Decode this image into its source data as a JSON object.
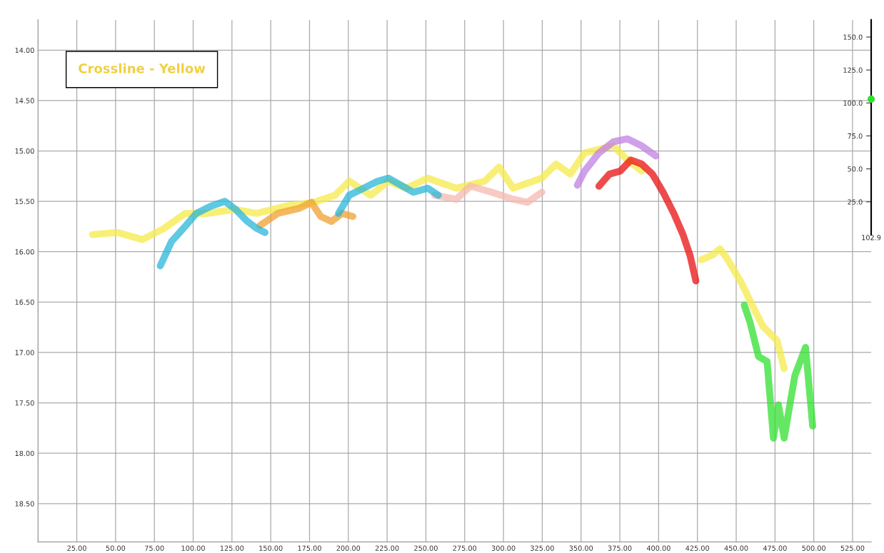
{
  "chart_data": {
    "type": "line",
    "annotations": [
      "Crossline - Yellow",
      "102.9"
    ],
    "xlim": [
      0,
      537
    ],
    "ylim": [
      18.88,
      13.7
    ],
    "xticks": [
      {
        "value": 25,
        "label": "25.00"
      },
      {
        "value": 50,
        "label": "50.00"
      },
      {
        "value": 75,
        "label": "75.00"
      },
      {
        "value": 100,
        "label": "100.00"
      },
      {
        "value": 125,
        "label": "125.00"
      },
      {
        "value": 150,
        "label": "150.00"
      },
      {
        "value": 175,
        "label": "175.00"
      },
      {
        "value": 200,
        "label": "200.00"
      },
      {
        "value": 225,
        "label": "225.00"
      },
      {
        "value": 250,
        "label": "250.00"
      },
      {
        "value": 275,
        "label": "275.00"
      },
      {
        "value": 300,
        "label": "300.00"
      },
      {
        "value": 325,
        "label": "325.00"
      },
      {
        "value": 350,
        "label": "350.00"
      },
      {
        "value": 375,
        "label": "375.00"
      },
      {
        "value": 400,
        "label": "400.00"
      },
      {
        "value": 425,
        "label": "425.00"
      },
      {
        "value": 450,
        "label": "450.00"
      },
      {
        "value": 475,
        "label": "475.00"
      },
      {
        "value": 500,
        "label": "500.00"
      },
      {
        "value": 525,
        "label": "525.00"
      }
    ],
    "yticks": [
      {
        "value": 14,
        "label": "14.00"
      },
      {
        "value": 14.5,
        "label": "14.50"
      },
      {
        "value": 15,
        "label": "15.00"
      },
      {
        "value": 15.5,
        "label": "15.50"
      },
      {
        "value": 16,
        "label": "16.00"
      },
      {
        "value": 16.5,
        "label": "16.50"
      },
      {
        "value": 17,
        "label": "17.00"
      },
      {
        "value": 17.5,
        "label": "17.50"
      },
      {
        "value": 18,
        "label": "18.00"
      },
      {
        "value": 18.5,
        "label": "18.50"
      }
    ],
    "y2lim": [
      -233,
      163
    ],
    "y2ticks": [
      {
        "value": 25,
        "label": "25.0"
      },
      {
        "value": 50,
        "label": "50.0"
      },
      {
        "value": 75,
        "label": "75.0"
      },
      {
        "value": 100,
        "label": "100.0"
      },
      {
        "value": 125,
        "label": "125.0"
      },
      {
        "value": 150,
        "label": "150.0"
      }
    ],
    "grid": true,
    "marker": "none",
    "line_style": "solid",
    "series": [
      {
        "color": "#f5e94a",
        "x": [
          35.1,
          51.2,
          67.3,
          81.1,
          94.9,
          108.7,
          127.0,
          140.8,
          159.2,
          177.6,
          191.4,
          200.6,
          214.4,
          225.9,
          237.4,
          251.2,
          269.5,
          287.9,
          297.1,
          306.3,
          324.7,
          333.9,
          343.1,
          352.3,
          370.7,
          379.9,
          389.1
        ],
        "values": [
          15.83,
          15.81,
          15.88,
          15.77,
          15.62,
          15.62,
          15.58,
          15.62,
          15.55,
          15.51,
          15.44,
          15.3,
          15.44,
          15.3,
          15.37,
          15.27,
          15.37,
          15.3,
          15.16,
          15.37,
          15.27,
          15.13,
          15.23,
          15.02,
          14.95,
          15.09,
          15.2
        ]
      },
      {
        "color": "#f5e94a",
        "x": [
          427.6,
          435.0,
          439.6,
          444.2,
          453.4,
          460.3,
          467.2,
          476.3,
          480.9
        ],
        "values": [
          16.08,
          16.03,
          15.97,
          16.07,
          16.31,
          16.53,
          16.74,
          16.88,
          17.16
        ]
      },
      {
        "color": "#f5b8b0",
        "x": [
          255.7,
          269.5,
          278.7,
          292.5,
          306.3,
          315.5,
          324.7
        ],
        "values": [
          15.44,
          15.48,
          15.35,
          15.41,
          15.48,
          15.51,
          15.41
        ]
      },
      {
        "color": "#f0a030",
        "x": [
          143.1,
          154.6,
          168.4,
          176.2,
          182.2,
          189.1,
          196.0,
          202.9
        ],
        "values": [
          15.74,
          15.62,
          15.57,
          15.51,
          15.65,
          15.7,
          15.62,
          15.65
        ]
      },
      {
        "color": "#29b6d8",
        "x": [
          78.8,
          86.0,
          94.2,
          102.0,
          111.2,
          120.4,
          127.3,
          134.2,
          141.1,
          146.3
        ],
        "values": [
          16.14,
          15.9,
          15.76,
          15.62,
          15.55,
          15.5,
          15.58,
          15.69,
          15.77,
          15.81
        ]
      },
      {
        "color": "#29b6d8",
        "x": [
          193.7,
          200.6,
          209.8,
          219.0,
          225.9,
          235.1,
          242.0,
          251.2,
          258.0
        ],
        "values": [
          15.62,
          15.44,
          15.37,
          15.3,
          15.27,
          15.35,
          15.41,
          15.37,
          15.44
        ]
      },
      {
        "color": "#c080e0",
        "x": [
          347.6,
          352.3,
          361.5,
          370.7,
          379.9,
          389.1,
          398.2
        ],
        "values": [
          15.34,
          15.2,
          15.02,
          14.91,
          14.88,
          14.95,
          15.05
        ]
      },
      {
        "color": "#e81010",
        "x": [
          361.5,
          368.3,
          375.2,
          382.1,
          389.1,
          396.0,
          402.9,
          409.8,
          415.7,
          420.3,
          424.0
        ],
        "values": [
          15.35,
          15.23,
          15.2,
          15.09,
          15.13,
          15.23,
          15.41,
          15.62,
          15.83,
          16.04,
          16.29
        ]
      },
      {
        "color": "#30e030",
        "x": [
          455.2,
          458.9,
          464.4,
          469.9,
          474.0,
          477.2,
          480.9,
          487.8,
          494.7,
          499.3
        ],
        "values": [
          16.53,
          16.7,
          17.04,
          17.09,
          17.85,
          17.52,
          17.85,
          17.23,
          16.95,
          17.73
        ]
      },
      {
        "type": "scatter",
        "axis": "y2",
        "color": "#30e030",
        "marker": "circle",
        "x": [
          537
        ],
        "values": [
          102.9
        ]
      }
    ]
  }
}
